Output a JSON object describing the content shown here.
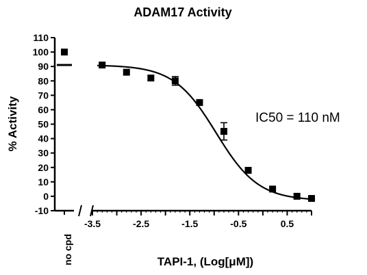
{
  "chart_data": {
    "type": "scatter",
    "title": "ADAM17 Activity",
    "xlabel": "TAPI-1, (Log[μM])",
    "ylabel": "% Activity",
    "annotation": "IC50 = 110 nM",
    "ylim": [
      -10,
      110
    ],
    "xlim": [
      -3.5,
      1.0
    ],
    "y_ticks": [
      -10,
      0,
      10,
      20,
      30,
      40,
      50,
      60,
      70,
      80,
      90,
      100,
      110
    ],
    "x_ticks": [
      -3.5,
      -3.0,
      -2.5,
      -2.0,
      -1.5,
      -1.0,
      -0.5,
      0.0,
      0.5,
      1.0
    ],
    "x_tick_labels": [
      "-3.5",
      "",
      "-2.5",
      "",
      "-1.5",
      "",
      "-0.5",
      "",
      "0.5",
      ""
    ],
    "control": {
      "label": "no cpd",
      "point": 100,
      "mean": 91
    },
    "series": [
      {
        "x": [
          -3.3,
          -2.8,
          -2.3,
          -1.8,
          -1.3,
          -0.8,
          -0.3,
          0.2,
          0.7,
          1.0
        ],
        "values": [
          91,
          86,
          82,
          80,
          65,
          45,
          18,
          5,
          0,
          -1.5
        ],
        "error": [
          0,
          0,
          0,
          3,
          0,
          6,
          0,
          0,
          0,
          0
        ]
      }
    ],
    "fit": {
      "top": 91,
      "bottom": -3,
      "log_ic50": -0.96,
      "hill": 1.0
    },
    "grid": false,
    "legend": "none"
  }
}
